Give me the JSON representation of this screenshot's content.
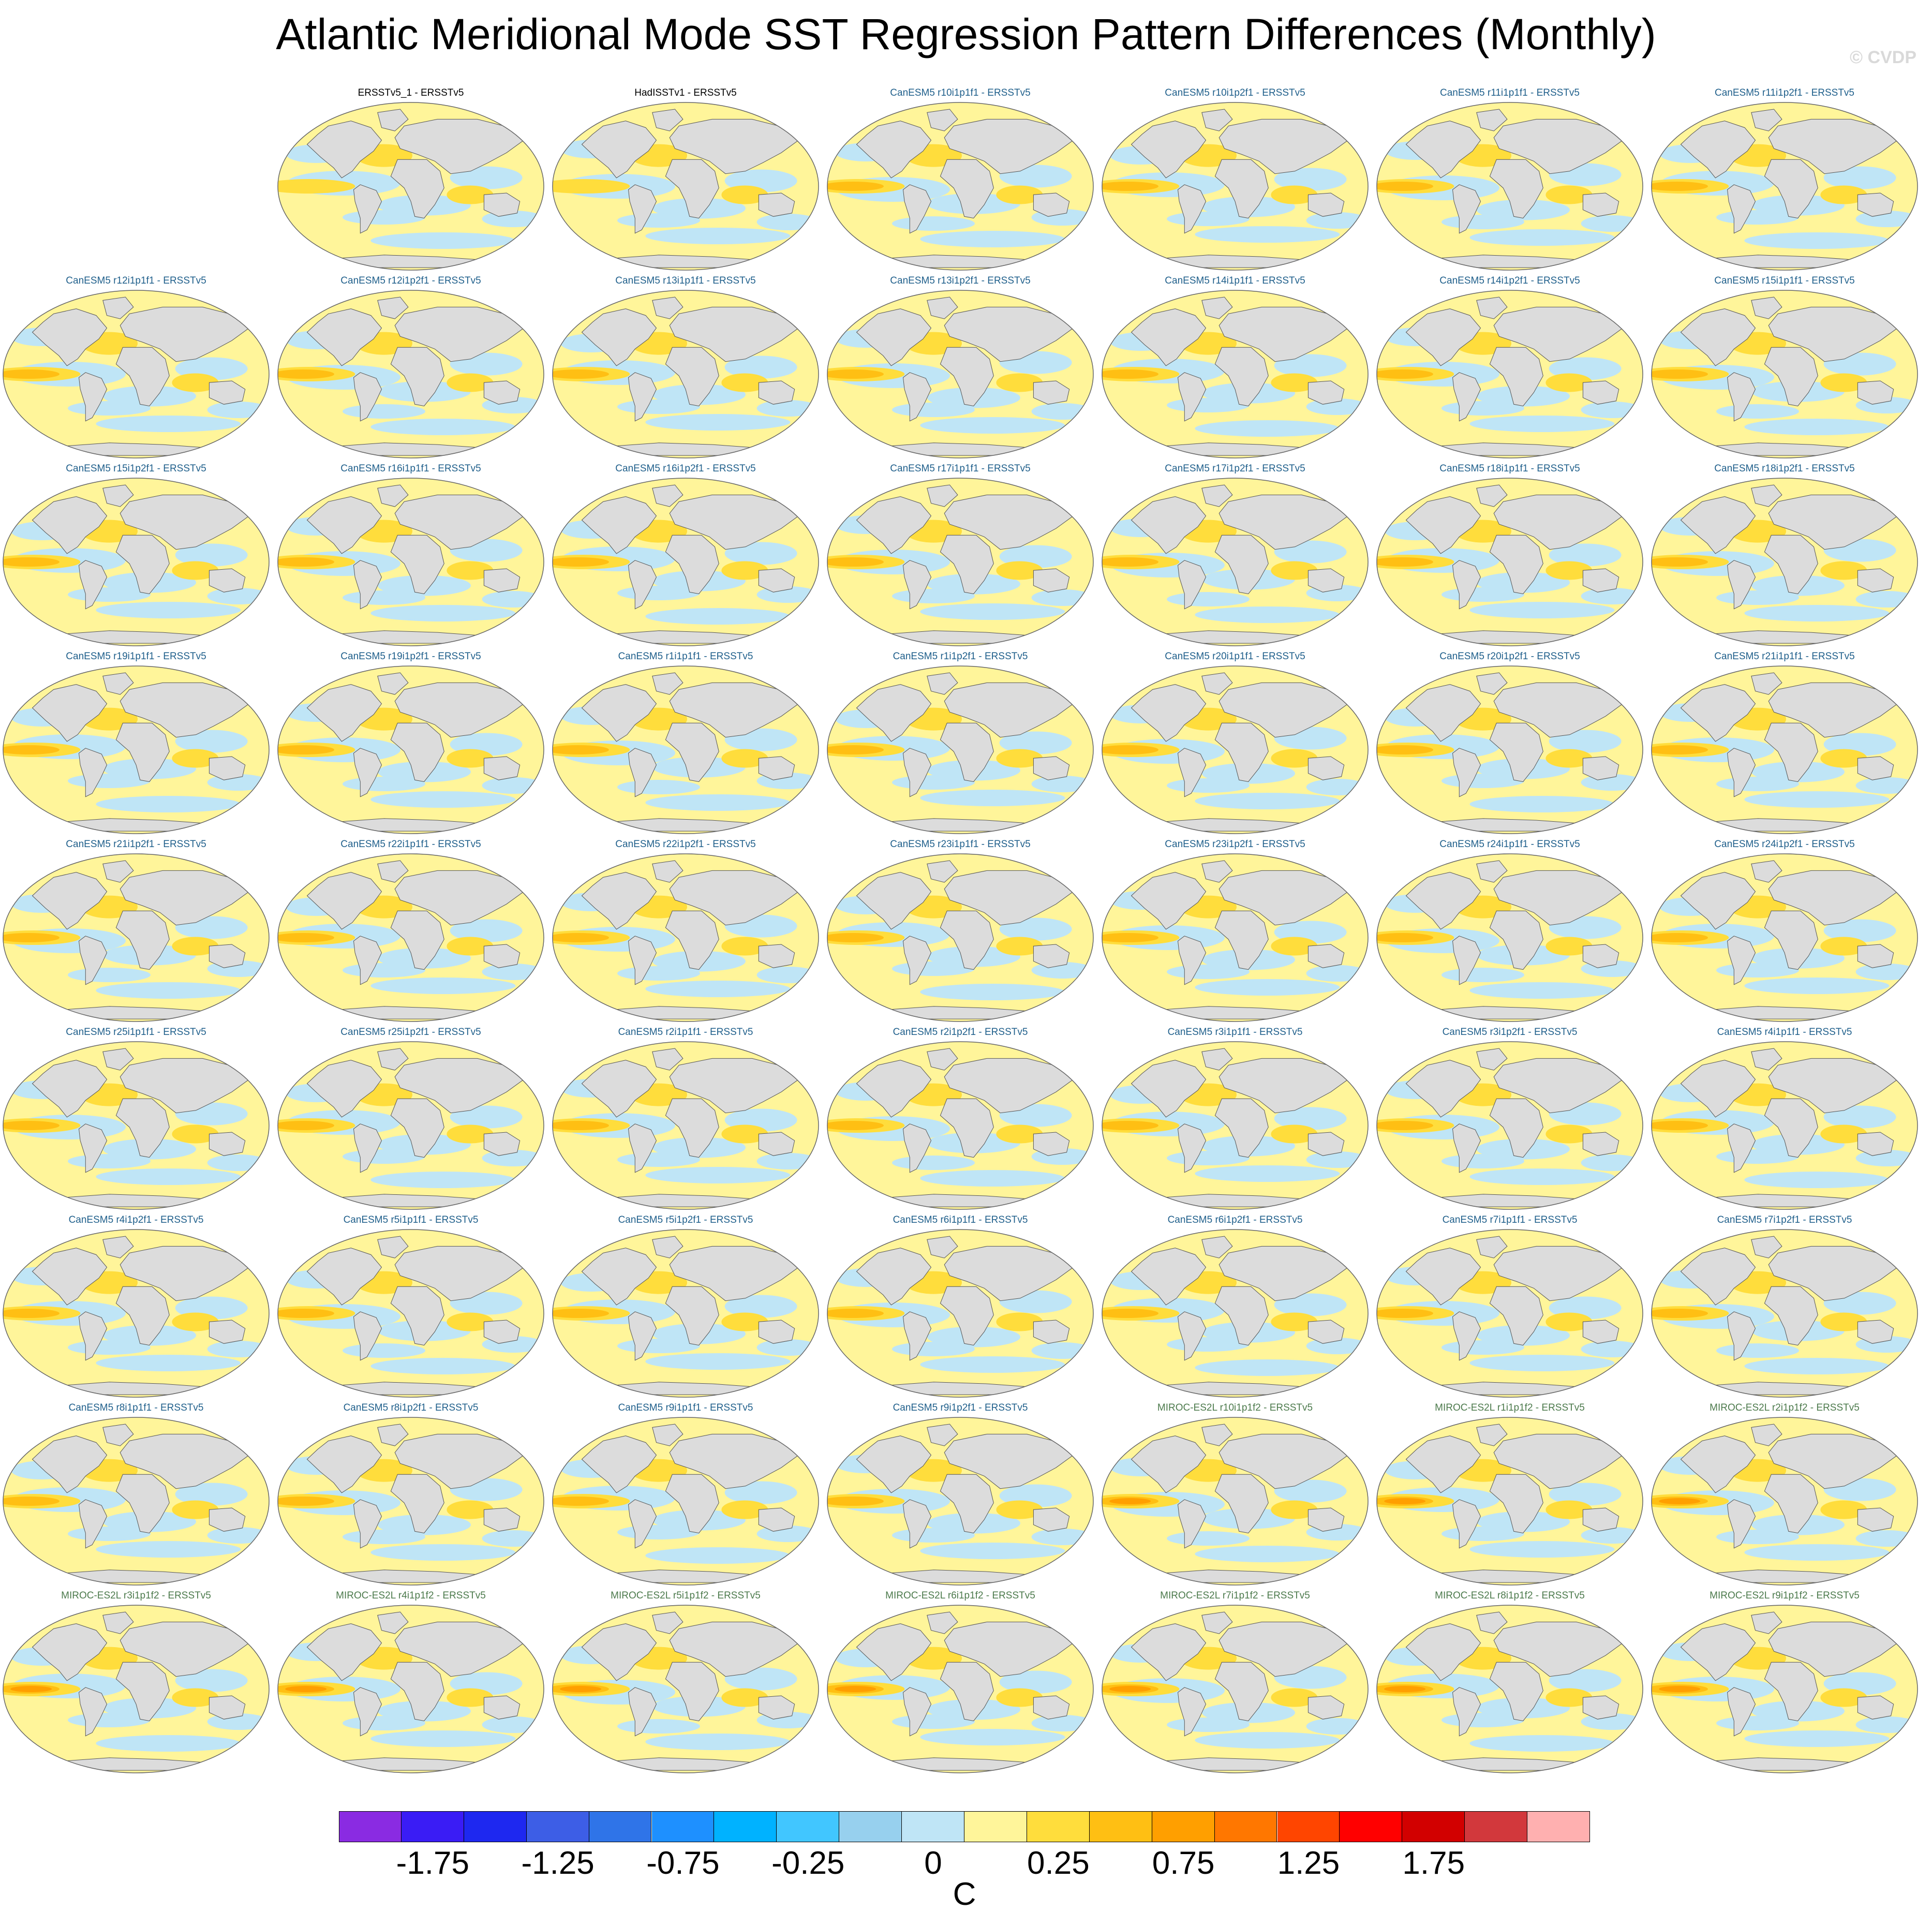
{
  "title": "Atlantic Meridional Mode SST Regression Pattern Differences (Monthly)",
  "watermark": "© CVDP",
  "panels": [
    {
      "label": "ERSSTv5_1 - ERSSTv5",
      "group": "obs"
    },
    {
      "label": "HadISSTv1 - ERSSTv5",
      "group": "obs"
    },
    {
      "label": "CanESM5 r10i1p1f1 - ERSSTv5",
      "group": "canesm"
    },
    {
      "label": "CanESM5 r10i1p2f1 - ERSSTv5",
      "group": "canesm"
    },
    {
      "label": "CanESM5 r11i1p1f1 - ERSSTv5",
      "group": "canesm"
    },
    {
      "label": "CanESM5 r11i1p2f1 - ERSSTv5",
      "group": "canesm"
    },
    {
      "label": "CanESM5 r12i1p1f1 - ERSSTv5",
      "group": "canesm"
    },
    {
      "label": "CanESM5 r12i1p2f1 - ERSSTv5",
      "group": "canesm"
    },
    {
      "label": "CanESM5 r13i1p1f1 - ERSSTv5",
      "group": "canesm"
    },
    {
      "label": "CanESM5 r13i1p2f1 - ERSSTv5",
      "group": "canesm"
    },
    {
      "label": "CanESM5 r14i1p1f1 - ERSSTv5",
      "group": "canesm"
    },
    {
      "label": "CanESM5 r14i1p2f1 - ERSSTv5",
      "group": "canesm"
    },
    {
      "label": "CanESM5 r15i1p1f1 - ERSSTv5",
      "group": "canesm"
    },
    {
      "label": "CanESM5 r15i1p2f1 - ERSSTv5",
      "group": "canesm"
    },
    {
      "label": "CanESM5 r16i1p1f1 - ERSSTv5",
      "group": "canesm"
    },
    {
      "label": "CanESM5 r16i1p2f1 - ERSSTv5",
      "group": "canesm"
    },
    {
      "label": "CanESM5 r17i1p1f1 - ERSSTv5",
      "group": "canesm"
    },
    {
      "label": "CanESM5 r17i1p2f1 - ERSSTv5",
      "group": "canesm"
    },
    {
      "label": "CanESM5 r18i1p1f1 - ERSSTv5",
      "group": "canesm"
    },
    {
      "label": "CanESM5 r18i1p2f1 - ERSSTv5",
      "group": "canesm"
    },
    {
      "label": "CanESM5 r19i1p1f1 - ERSSTv5",
      "group": "canesm"
    },
    {
      "label": "CanESM5 r19i1p2f1 - ERSSTv5",
      "group": "canesm"
    },
    {
      "label": "CanESM5 r1i1p1f1 - ERSSTv5",
      "group": "canesm"
    },
    {
      "label": "CanESM5 r1i1p2f1 - ERSSTv5",
      "group": "canesm"
    },
    {
      "label": "CanESM5 r20i1p1f1 - ERSSTv5",
      "group": "canesm"
    },
    {
      "label": "CanESM5 r20i1p2f1 - ERSSTv5",
      "group": "canesm"
    },
    {
      "label": "CanESM5 r21i1p1f1 - ERSSTv5",
      "group": "canesm"
    },
    {
      "label": "CanESM5 r21i1p2f1 - ERSSTv5",
      "group": "canesm"
    },
    {
      "label": "CanESM5 r22i1p1f1 - ERSSTv5",
      "group": "canesm"
    },
    {
      "label": "CanESM5 r22i1p2f1 - ERSSTv5",
      "group": "canesm"
    },
    {
      "label": "CanESM5 r23i1p1f1 - ERSSTv5",
      "group": "canesm"
    },
    {
      "label": "CanESM5 r23i1p2f1 - ERSSTv5",
      "group": "canesm"
    },
    {
      "label": "CanESM5 r24i1p1f1 - ERSSTv5",
      "group": "canesm"
    },
    {
      "label": "CanESM5 r24i1p2f1 - ERSSTv5",
      "group": "canesm"
    },
    {
      "label": "CanESM5 r25i1p1f1 - ERSSTv5",
      "group": "canesm"
    },
    {
      "label": "CanESM5 r25i1p2f1 - ERSSTv5",
      "group": "canesm"
    },
    {
      "label": "CanESM5 r2i1p1f1 - ERSSTv5",
      "group": "canesm"
    },
    {
      "label": "CanESM5 r2i1p2f1 - ERSSTv5",
      "group": "canesm"
    },
    {
      "label": "CanESM5 r3i1p1f1 - ERSSTv5",
      "group": "canesm"
    },
    {
      "label": "CanESM5 r3i1p2f1 - ERSSTv5",
      "group": "canesm"
    },
    {
      "label": "CanESM5 r4i1p1f1 - ERSSTv5",
      "group": "canesm"
    },
    {
      "label": "CanESM5 r4i1p2f1 - ERSSTv5",
      "group": "canesm"
    },
    {
      "label": "CanESM5 r5i1p1f1 - ERSSTv5",
      "group": "canesm"
    },
    {
      "label": "CanESM5 r5i1p2f1 - ERSSTv5",
      "group": "canesm"
    },
    {
      "label": "CanESM5 r6i1p1f1 - ERSSTv5",
      "group": "canesm"
    },
    {
      "label": "CanESM5 r6i1p2f1 - ERSSTv5",
      "group": "canesm"
    },
    {
      "label": "CanESM5 r7i1p1f1 - ERSSTv5",
      "group": "canesm"
    },
    {
      "label": "CanESM5 r7i1p2f1 - ERSSTv5",
      "group": "canesm"
    },
    {
      "label": "CanESM5 r8i1p1f1 - ERSSTv5",
      "group": "canesm"
    },
    {
      "label": "CanESM5 r8i1p2f1 - ERSSTv5",
      "group": "canesm"
    },
    {
      "label": "CanESM5 r9i1p1f1 - ERSSTv5",
      "group": "canesm"
    },
    {
      "label": "CanESM5 r9i1p2f1 - ERSSTv5",
      "group": "canesm"
    },
    {
      "label": "MIROC-ES2L r10i1p1f2 - ERSSTv5",
      "group": "miroc"
    },
    {
      "label": "MIROC-ES2L r1i1p1f2 - ERSSTv5",
      "group": "miroc"
    },
    {
      "label": "MIROC-ES2L r2i1p1f2 - ERSSTv5",
      "group": "miroc"
    },
    {
      "label": "MIROC-ES2L r3i1p1f2 - ERSSTv5",
      "group": "miroc"
    },
    {
      "label": "MIROC-ES2L r4i1p1f2 - ERSSTv5",
      "group": "miroc"
    },
    {
      "label": "MIROC-ES2L r5i1p1f2 - ERSSTv5",
      "group": "miroc"
    },
    {
      "label": "MIROC-ES2L r6i1p1f2 - ERSSTv5",
      "group": "miroc"
    },
    {
      "label": "MIROC-ES2L r7i1p1f2 - ERSSTv5",
      "group": "miroc"
    },
    {
      "label": "MIROC-ES2L r8i1p1f2 - ERSSTv5",
      "group": "miroc"
    },
    {
      "label": "MIROC-ES2L r9i1p1f2 - ERSSTv5",
      "group": "miroc"
    }
  ],
  "colorbar": {
    "units": "C",
    "colors": [
      "#8a2be2",
      "#3a1cf5",
      "#1e28f0",
      "#3d5ee6",
      "#2f74e8",
      "#1e90ff",
      "#00b2ff",
      "#41c6ff",
      "#97d0ee",
      "#bfe5f6",
      "#fff59a",
      "#ffdd3c",
      "#ffbf13",
      "#ff9f00",
      "#ff7700",
      "#ff4500",
      "#ff0000",
      "#d20000",
      "#d2383c",
      "#ffb0b0"
    ],
    "tick_labels": [
      "-1.75",
      "-1.25",
      "-0.75",
      "-0.25",
      "0",
      "0.25",
      "0.75",
      "1.25",
      "1.75"
    ]
  }
}
